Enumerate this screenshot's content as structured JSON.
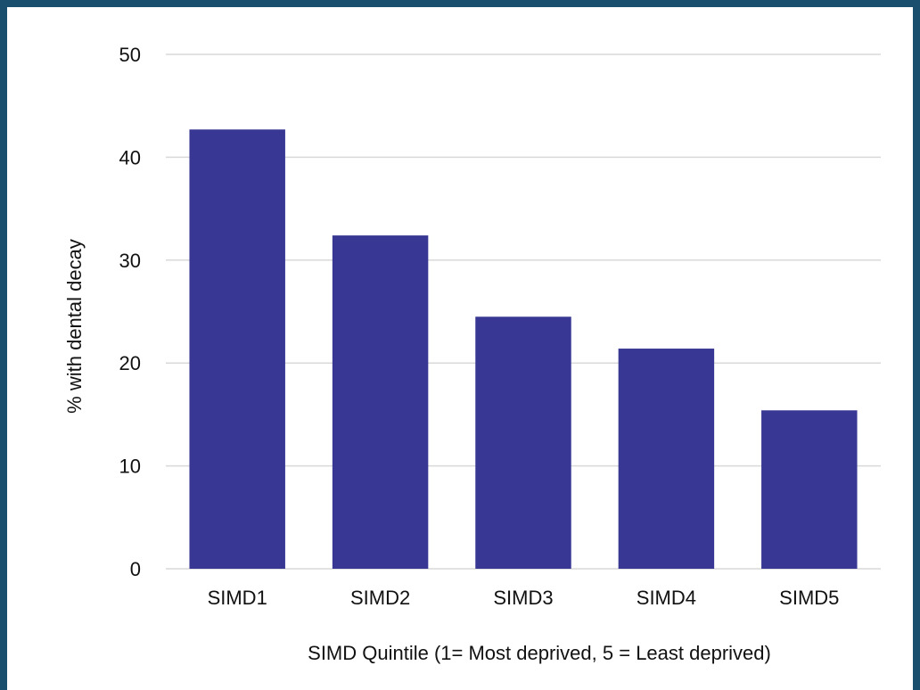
{
  "chart_data": {
    "type": "bar",
    "categories": [
      "SIMD1",
      "SIMD2",
      "SIMD3",
      "SIMD4",
      "SIMD5"
    ],
    "values": [
      42.7,
      32.4,
      24.5,
      21.4,
      15.4
    ],
    "xlabel": "SIMD Quintile (1= Most deprived, 5 = Least deprived)",
    "ylabel": "% with dental decay",
    "ylim": [
      0,
      50
    ],
    "yticks": [
      0,
      10,
      20,
      30,
      40,
      50
    ],
    "grid": true,
    "legend": "none",
    "colors": {
      "bar": "#383894",
      "grid": "#d9d9d9",
      "frame": "#1b4f6e"
    }
  }
}
